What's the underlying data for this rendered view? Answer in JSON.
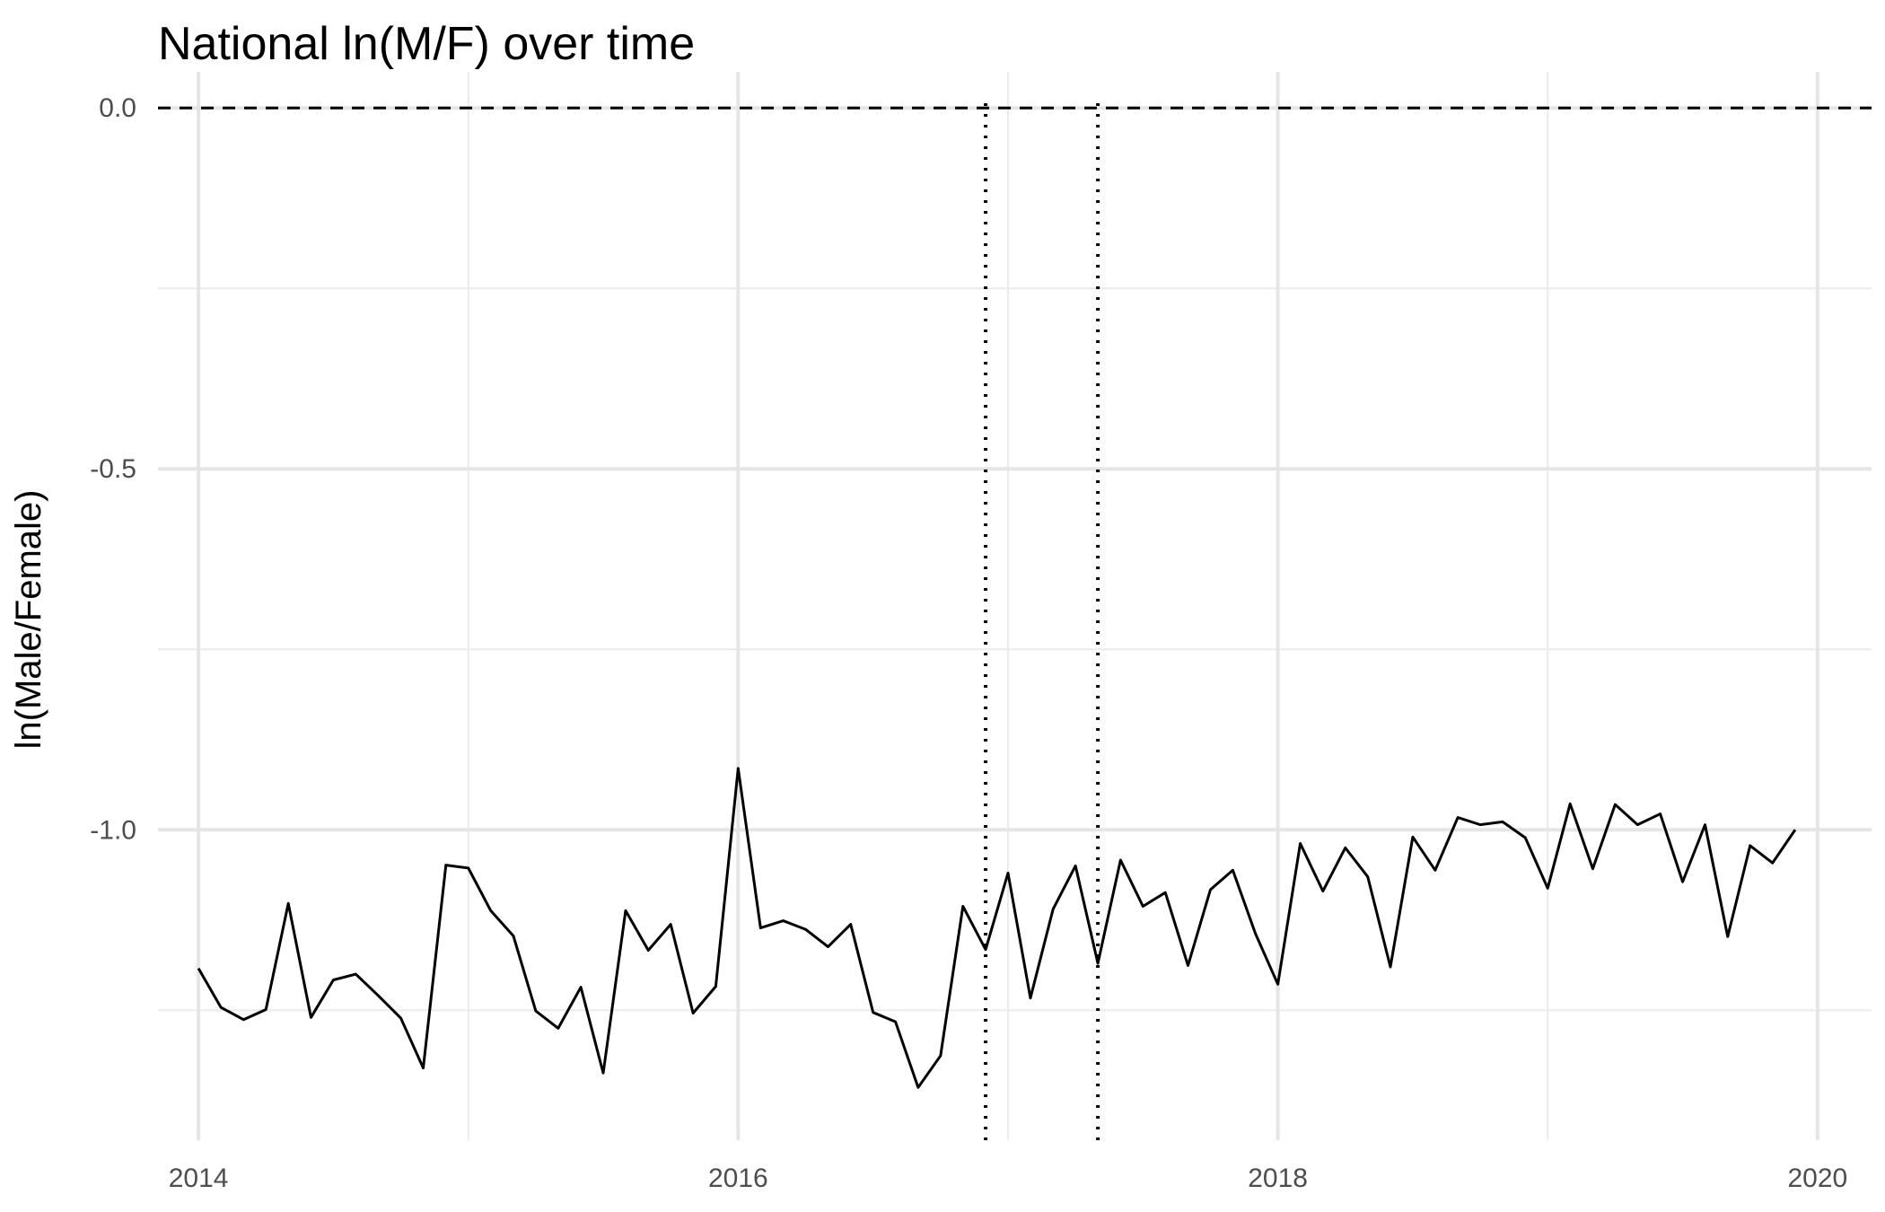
{
  "chart_data": {
    "type": "line",
    "title": "National ln(M/F) over time",
    "xlabel": "",
    "ylabel": "ln(Male/Female)",
    "xlim": [
      2013.85,
      2020.2
    ],
    "ylim": [
      -1.43,
      0.05
    ],
    "x_ticks": [
      2014,
      2016,
      2018,
      2020
    ],
    "y_ticks": [
      0.0,
      -0.5,
      -1.0
    ],
    "x_tick_labels": [
      "2014",
      "2016",
      "2018",
      "2020"
    ],
    "y_tick_labels": [
      "0.0",
      "-0.5",
      "-1.0"
    ],
    "grid": true,
    "reference_lines": {
      "horizontal_dashed": 0.0,
      "vertical_dotted": [
        2016.917,
        2017.333
      ]
    },
    "series": [
      {
        "x": [
          2014.0,
          2014.083,
          2014.167,
          2014.25,
          2014.333,
          2014.417,
          2014.5,
          2014.583,
          2014.667,
          2014.75,
          2014.833,
          2014.917,
          2015.0,
          2015.083,
          2015.167,
          2015.25,
          2015.333,
          2015.417,
          2015.5,
          2015.583,
          2015.667,
          2015.75,
          2015.833,
          2015.917,
          2016.0,
          2016.083,
          2016.167,
          2016.25,
          2016.333,
          2016.417,
          2016.5,
          2016.583,
          2016.667,
          2016.75,
          2016.833,
          2016.917,
          2017.0,
          2017.083,
          2017.167,
          2017.25,
          2017.333,
          2017.417,
          2017.5,
          2017.583,
          2017.667,
          2017.75,
          2017.833,
          2017.917,
          2018.0,
          2018.083,
          2018.167,
          2018.25,
          2018.333,
          2018.417,
          2018.5,
          2018.583,
          2018.667,
          2018.75,
          2018.833,
          2018.917,
          2019.0,
          2019.083,
          2019.167,
          2019.25,
          2019.333,
          2019.417,
          2019.5,
          2019.583,
          2019.667,
          2019.75,
          2019.833,
          2019.917
        ],
        "values": [
          -1.192,
          -1.246,
          -1.263,
          -1.249,
          -1.102,
          -1.26,
          -1.208,
          -1.2,
          -1.23,
          -1.261,
          -1.33,
          -1.049,
          -1.053,
          -1.112,
          -1.147,
          -1.251,
          -1.275,
          -1.218,
          -1.337,
          -1.112,
          -1.167,
          -1.131,
          -1.254,
          -1.217,
          -0.915,
          -1.136,
          -1.126,
          -1.138,
          -1.162,
          -1.131,
          -1.253,
          -1.266,
          -1.357,
          -1.313,
          -1.106,
          -1.166,
          -1.06,
          -1.233,
          -1.11,
          -1.05,
          -1.185,
          -1.042,
          -1.106,
          -1.087,
          -1.188,
          -1.083,
          -1.056,
          -1.144,
          -1.214,
          -1.019,
          -1.085,
          -1.025,
          -1.065,
          -1.19,
          -1.01,
          -1.056,
          -0.983,
          -0.993,
          -0.989,
          -1.011,
          -1.081,
          -0.964,
          -1.054,
          -0.965,
          -0.993,
          -0.978,
          -1.072,
          -0.993,
          -1.148,
          -1.022,
          -1.046,
          -1.0
        ]
      }
    ]
  }
}
